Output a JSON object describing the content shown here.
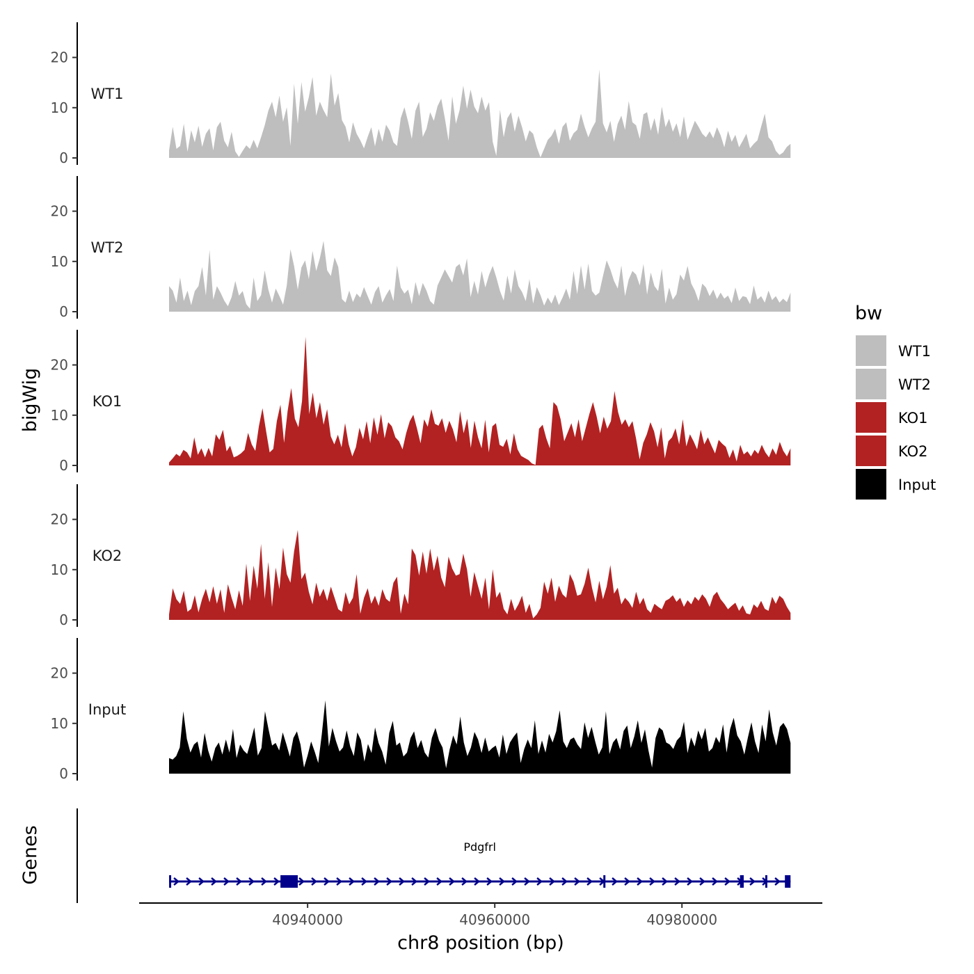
{
  "chart_data": {
    "type": "area",
    "title": "",
    "ylabel": "bigWig",
    "xlabel": "chr8 position (bp)",
    "gene_track_label": "Genes",
    "ylim": [
      0,
      27
    ],
    "yticks": [
      0,
      10,
      20
    ],
    "xlim": [
      40922000,
      40995000
    ],
    "xticks": [
      40940000,
      40960000,
      40980000
    ],
    "data_range": [
      40925200,
      40991600
    ],
    "series": [
      {
        "name": "WT1",
        "color": "#bebebe",
        "values": [
          1.5,
          6.2,
          1.8,
          2.4,
          6.8,
          1.2,
          5.5,
          3.1,
          6.4,
          2.2,
          4.8,
          5.9,
          1.5,
          6.1,
          7.2,
          3.4,
          2.1,
          5.2,
          1.3,
          0.2,
          1.4,
          2.5,
          1.8,
          3.6,
          1.9,
          4.1,
          6.5,
          9.4,
          11.2,
          8.1,
          12.4,
          7.2,
          10.1,
          2.4,
          14.8,
          6.8,
          15.1,
          9.2,
          12.1,
          16.1,
          8.4,
          11.2,
          9.5,
          8.1,
          16.8,
          10.4,
          12.9,
          7.5,
          6.2,
          3.1,
          7.1,
          4.8,
          3.5,
          1.9,
          4.2,
          6.1,
          2.3,
          5.8,
          3.2,
          6.6,
          5.4,
          3.1,
          2.4,
          7.9,
          10.1,
          7.2,
          3.8,
          9.4,
          11.2,
          4.2,
          5.8,
          9.1,
          7.4,
          10.3,
          11.8,
          7.9,
          3.4,
          12.3,
          6.8,
          9.5,
          14.4,
          9.8,
          13.6,
          10.2,
          8.9,
          12.2,
          9.4,
          11.1,
          3.2,
          0.4,
          9.6,
          4.1,
          7.9,
          9.1,
          5.2,
          8.4,
          6.1,
          3.3,
          5.5,
          4.8,
          2.1,
          0.1,
          1.8,
          3.6,
          4.4,
          5.8,
          2.8,
          6.2,
          7.1,
          3.4,
          4.9,
          5.6,
          8.8,
          6.2,
          4.1,
          5.9,
          7.2,
          17.6,
          6.9,
          5.1,
          7.4,
          3.2,
          6.8,
          8.4,
          5.6,
          11.3,
          7.1,
          6.5,
          3.8,
          8.7,
          9.1,
          5.4,
          7.9,
          4.6,
          10.2,
          6.1,
          7.8,
          5.2,
          6.9,
          4.1,
          8.3,
          3.6,
          5.5,
          7.4,
          6.2,
          4.8,
          4.1,
          5.3,
          3.9,
          6.1,
          4.5,
          2.1,
          5.4,
          3.2,
          4.6,
          2.1,
          3.4,
          4.8,
          1.9,
          2.8,
          3.5,
          6.2,
          8.8,
          4.1,
          3.3,
          1.4,
          0.6,
          1.1,
          2.2,
          2.8
        ]
      },
      {
        "name": "WT2",
        "color": "#bebebe",
        "values": [
          5.1,
          4.2,
          1.8,
          6.8,
          2.1,
          4.2,
          1.3,
          4.1,
          5.1,
          8.9,
          3.2,
          12.3,
          2.4,
          5.1,
          3.8,
          2.2,
          1.1,
          2.9,
          6.1,
          3.2,
          4.1,
          1.5,
          0.6,
          6.8,
          2.1,
          3.3,
          8.2,
          4.4,
          1.8,
          4.6,
          3.1,
          1.4,
          5.2,
          12.4,
          9.1,
          4.4,
          8.8,
          10.2,
          6.5,
          12.1,
          8.1,
          10.6,
          14.1,
          8.2,
          7.1,
          10.8,
          8.9,
          2.5,
          1.8,
          4.2,
          1.9,
          3.6,
          2.8,
          4.9,
          3.1,
          1.4,
          3.9,
          5.1,
          1.8,
          3.3,
          4.5,
          2.1,
          9.2,
          4.8,
          3.6,
          4.4,
          1.5,
          5.9,
          3.1,
          5.7,
          4.2,
          2.1,
          1.4,
          5.2,
          6.8,
          8.4,
          7.1,
          5.8,
          8.9,
          9.5,
          7.2,
          10.6,
          2.9,
          6.1,
          3.4,
          8.1,
          4.8,
          7.3,
          9.1,
          6.8,
          4.1,
          2.2,
          7.2,
          3.6,
          8.4,
          5.1,
          3.9,
          2.1,
          6.5,
          1.6,
          4.9,
          3.3,
          1.2,
          2.8,
          1.6,
          3.4,
          1.3,
          2.8,
          4.6,
          2.4,
          8.1,
          3.5,
          9.2,
          4.4,
          9.6,
          4.1,
          3.2,
          3.8,
          7.1,
          10.2,
          8.4,
          6.1,
          4.6,
          9.2,
          3.1,
          6.4,
          8.1,
          7.4,
          5.2,
          9.5,
          3.4,
          7.8,
          5.1,
          4.1,
          8.6,
          1.6,
          4.8,
          2.4,
          3.5,
          7.4,
          6.2,
          9.1,
          5.6,
          4.2,
          2.1,
          5.6,
          4.8,
          3.1,
          4.4,
          2.5,
          3.8,
          2.6,
          3.2,
          1.7,
          4.8,
          2.1,
          3.1,
          2.9,
          1.5,
          5.2,
          2.4,
          3.1,
          1.8,
          4.2,
          2.3,
          3.1,
          1.8,
          2.6,
          1.9,
          3.8
        ]
      },
      {
        "name": "KO1",
        "color": "#b22222",
        "values": [
          0.6,
          1.4,
          2.3,
          1.8,
          3.1,
          2.6,
          1.4,
          5.6,
          2.1,
          3.4,
          1.6,
          3.5,
          1.8,
          6.2,
          5.1,
          7.1,
          2.8,
          3.9,
          1.6,
          1.9,
          2.4,
          3.1,
          6.5,
          4.2,
          2.9,
          7.8,
          11.4,
          6.8,
          2.6,
          3.3,
          8.8,
          12.1,
          4.5,
          10.8,
          15.4,
          9.3,
          7.6,
          12.8,
          25.6,
          10.2,
          14.5,
          9.4,
          12.6,
          8.1,
          11.2,
          5.8,
          4.2,
          6.1,
          3.6,
          8.4,
          4.2,
          1.8,
          3.6,
          7.5,
          5.2,
          8.8,
          4.4,
          9.6,
          6.1,
          10.2,
          5.4,
          8.6,
          7.8,
          5.6,
          4.8,
          3.2,
          6.4,
          8.8,
          10.1,
          7.4,
          4.4,
          9.2,
          7.7,
          11.2,
          8.3,
          7.9,
          9.4,
          6.5,
          8.9,
          7.2,
          4.6,
          10.8,
          6.4,
          9.3,
          3.5,
          8.9,
          5.6,
          3.4,
          9.1,
          2.6,
          7.8,
          8.4,
          4.1,
          3.7,
          5.3,
          2.2,
          6.4,
          3.2,
          1.9,
          1.5,
          1.1,
          0.4,
          0.1,
          7.3,
          8.1,
          5.4,
          3.4,
          12.6,
          11.8,
          9.2,
          4.8,
          6.6,
          8.4,
          5.6,
          9.2,
          4.8,
          7.5,
          10.2,
          12.6,
          9.8,
          6.4,
          9.7,
          7.3,
          8.8,
          14.8,
          10.6,
          8.1,
          9.2,
          7.6,
          8.8,
          5.4,
          1.2,
          4.5,
          6.2,
          8.6,
          6.8,
          3.6,
          7.6,
          1.4,
          4.8,
          5.6,
          7.4,
          4.2,
          9.2,
          3.8,
          6.2,
          4.8,
          3.2,
          7.1,
          4.2,
          5.6,
          3.9,
          2.4,
          5.1,
          4.3,
          3.7,
          1.5,
          3.2,
          0.8,
          4.1,
          2.2,
          2.8,
          1.8,
          3.1,
          2.3,
          4.1,
          2.6,
          1.6,
          3.4,
          2.1,
          4.7,
          2.9,
          1.8,
          3.4
        ]
      },
      {
        "name": "KO2",
        "color": "#b22222",
        "values": [
          1.1,
          6.3,
          4.1,
          3.2,
          5.8,
          1.6,
          2.2,
          4.9,
          1.5,
          4.2,
          6.2,
          3.5,
          6.7,
          3.2,
          6.1,
          1.4,
          7.1,
          4.4,
          2.1,
          5.9,
          2.8,
          11.2,
          3.8,
          10.8,
          6.2,
          15.1,
          4.2,
          11.5,
          2.6,
          10.4,
          6.1,
          14.4,
          9.1,
          7.4,
          13.6,
          17.9,
          8.1,
          9.4,
          5.6,
          3.1,
          7.4,
          4.6,
          6.2,
          3.8,
          6.6,
          4.4,
          2.1,
          1.6,
          5.5,
          3.1,
          4.4,
          9.1,
          1.2,
          4.4,
          6.3,
          3.2,
          4.8,
          2.8,
          6.1,
          4.2,
          3.6,
          7.4,
          8.6,
          1.2,
          5.2,
          3.1,
          14.2,
          12.9,
          8.8,
          13.6,
          9.2,
          14.2,
          9.8,
          12.8,
          8.4,
          6.5,
          12.6,
          10.2,
          8.8,
          9.1,
          13.2,
          10.1,
          4.6,
          9.5,
          6.8,
          4.2,
          8.4,
          2.1,
          10.1,
          4.4,
          5.6,
          2.2,
          1.1,
          4.2,
          1.8,
          3.1,
          4.8,
          1.4,
          3.2,
          0.3,
          1.1,
          2.4,
          7.6,
          5.2,
          8.4,
          3.6,
          6.8,
          5.1,
          4.4,
          9.1,
          7.6,
          4.8,
          5.1,
          7.2,
          10.4,
          6.4,
          3.5,
          7.8,
          4.1,
          6.6,
          10.9,
          5.2,
          6.4,
          3.1,
          4.4,
          3.6,
          2.4,
          5.6,
          3.1,
          4.4,
          2.1,
          1.4,
          3.2,
          2.6,
          2.1,
          3.8,
          4.2,
          4.9,
          3.6,
          4.4,
          2.6,
          3.9,
          3.1,
          4.6,
          3.8,
          5.1,
          4.2,
          2.6,
          4.8,
          5.6,
          4.1,
          3.2,
          2.1,
          2.8,
          3.4,
          1.8,
          2.9,
          1.3,
          1.1,
          3.1,
          2.4,
          3.8,
          2.2,
          1.8,
          4.6,
          3.2,
          4.8,
          4.2,
          2.6,
          1.4
        ]
      },
      {
        "name": "Input",
        "color": "#000000",
        "values": [
          3.1,
          2.8,
          3.5,
          5.2,
          12.4,
          6.9,
          4.2,
          5.8,
          6.4,
          3.2,
          8.1,
          4.6,
          2.4,
          5.1,
          6.2,
          3.8,
          6.8,
          4.2,
          8.9,
          3.1,
          5.8,
          4.6,
          3.9,
          6.4,
          9.2,
          3.6,
          5.1,
          12.4,
          8.8,
          5.6,
          6.1,
          4.6,
          8.2,
          5.9,
          3.4,
          7.1,
          8.4,
          5.8,
          1.2,
          3.6,
          6.4,
          4.4,
          2.1,
          7.8,
          14.6,
          5.4,
          9.1,
          6.5,
          4.4,
          5.2,
          8.6,
          5.4,
          3.5,
          8.2,
          6.7,
          2.4,
          5.9,
          4.1,
          9.2,
          6.1,
          4.4,
          1.8,
          8.1,
          10.5,
          5.6,
          6.2,
          3.4,
          4.2,
          7.1,
          8.4,
          5.1,
          6.7,
          4.2,
          3.2,
          7.1,
          9.1,
          6.6,
          5.2,
          1.1,
          4.8,
          7.6,
          5.8,
          11.4,
          6.2,
          3.5,
          5.2,
          8.3,
          6.8,
          4.1,
          7.2,
          4.4,
          5.1,
          5.6,
          3.2,
          7.8,
          3.9,
          6.2,
          7.3,
          8.2,
          2.1,
          4.9,
          6.8,
          5.1,
          10.6,
          3.9,
          6.6,
          4.2,
          7.9,
          6.2,
          8.4,
          12.6,
          6.4,
          5.1,
          6.8,
          7.2,
          5.8,
          4.9,
          10.2,
          7.1,
          9.3,
          6.4,
          3.8,
          5.2,
          12.4,
          3.9,
          6.2,
          7.1,
          4.8,
          8.5,
          9.6,
          5.1,
          7.4,
          10.6,
          6.1,
          8.8,
          4.6,
          1.2,
          7.1,
          9.2,
          8.6,
          6.2,
          5.8,
          4.9,
          6.6,
          7.4,
          10.3,
          4.1,
          7.2,
          5.4,
          8.6,
          6.8,
          9.1,
          4.4,
          5.1,
          7.3,
          6.1,
          9.8,
          4.2,
          8.9,
          11.1,
          7.6,
          6.4,
          3.8,
          7.2,
          10.2,
          6.4,
          4.1,
          9.8,
          6.4,
          12.8,
          8.2,
          5.6,
          9.3,
          10.1,
          8.9,
          6.1
        ]
      }
    ],
    "legend": {
      "title": "bw",
      "position": "right",
      "entries": [
        {
          "label": "WT1",
          "color": "#bebebe"
        },
        {
          "label": "WT2",
          "color": "#bebebe"
        },
        {
          "label": "KO1",
          "color": "#b22222"
        },
        {
          "label": "KO2",
          "color": "#b22222"
        },
        {
          "label": "Input",
          "color": "#000000"
        }
      ]
    },
    "gene": {
      "name": "Pdgfrl",
      "color": "#00008b",
      "strand": "+",
      "start": 40925200,
      "end": 40991600,
      "exons": [
        {
          "start": 40925200,
          "end": 40925350
        },
        {
          "start": 40937100,
          "end": 40938950
        },
        {
          "start": 40971600,
          "end": 40971700
        },
        {
          "start": 40986200,
          "end": 40986600
        },
        {
          "start": 40988900,
          "end": 40989000
        },
        {
          "start": 40991000,
          "end": 40991600
        }
      ]
    }
  }
}
